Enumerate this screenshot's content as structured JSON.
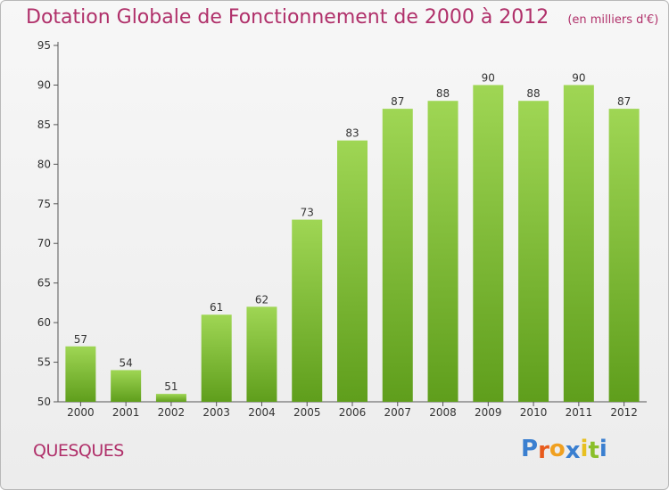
{
  "header": {
    "title": "Dotation Globale de Fonctionnement de 2000 à 2012",
    "subtitle": "(en milliers d'€)"
  },
  "footer": {
    "commune": "QUESQUES",
    "logo": "Proxiti"
  },
  "colors": {
    "title": "#b0306a",
    "bar_light": "#9fd654",
    "bar_dark": "#5f9e1c",
    "logo_letters": [
      "#3a7fd0",
      "#e85b1d",
      "#f0a020",
      "#3a7fd0",
      "#e8c020",
      "#8abf2a",
      "#3a7fd0"
    ]
  },
  "chart_data": {
    "type": "bar",
    "title": "",
    "xlabel": "",
    "ylabel": "",
    "categories": [
      "2000",
      "2001",
      "2002",
      "2003",
      "2004",
      "2005",
      "2006",
      "2007",
      "2008",
      "2009",
      "2010",
      "2011",
      "2012"
    ],
    "values": [
      57,
      54,
      51,
      61,
      62,
      73,
      83,
      87,
      88,
      90,
      88,
      90,
      87
    ],
    "ylim": [
      50,
      95
    ],
    "yticks": [
      50,
      55,
      60,
      65,
      70,
      75,
      80,
      85,
      90,
      95
    ],
    "grid": false,
    "data_labels": true
  }
}
